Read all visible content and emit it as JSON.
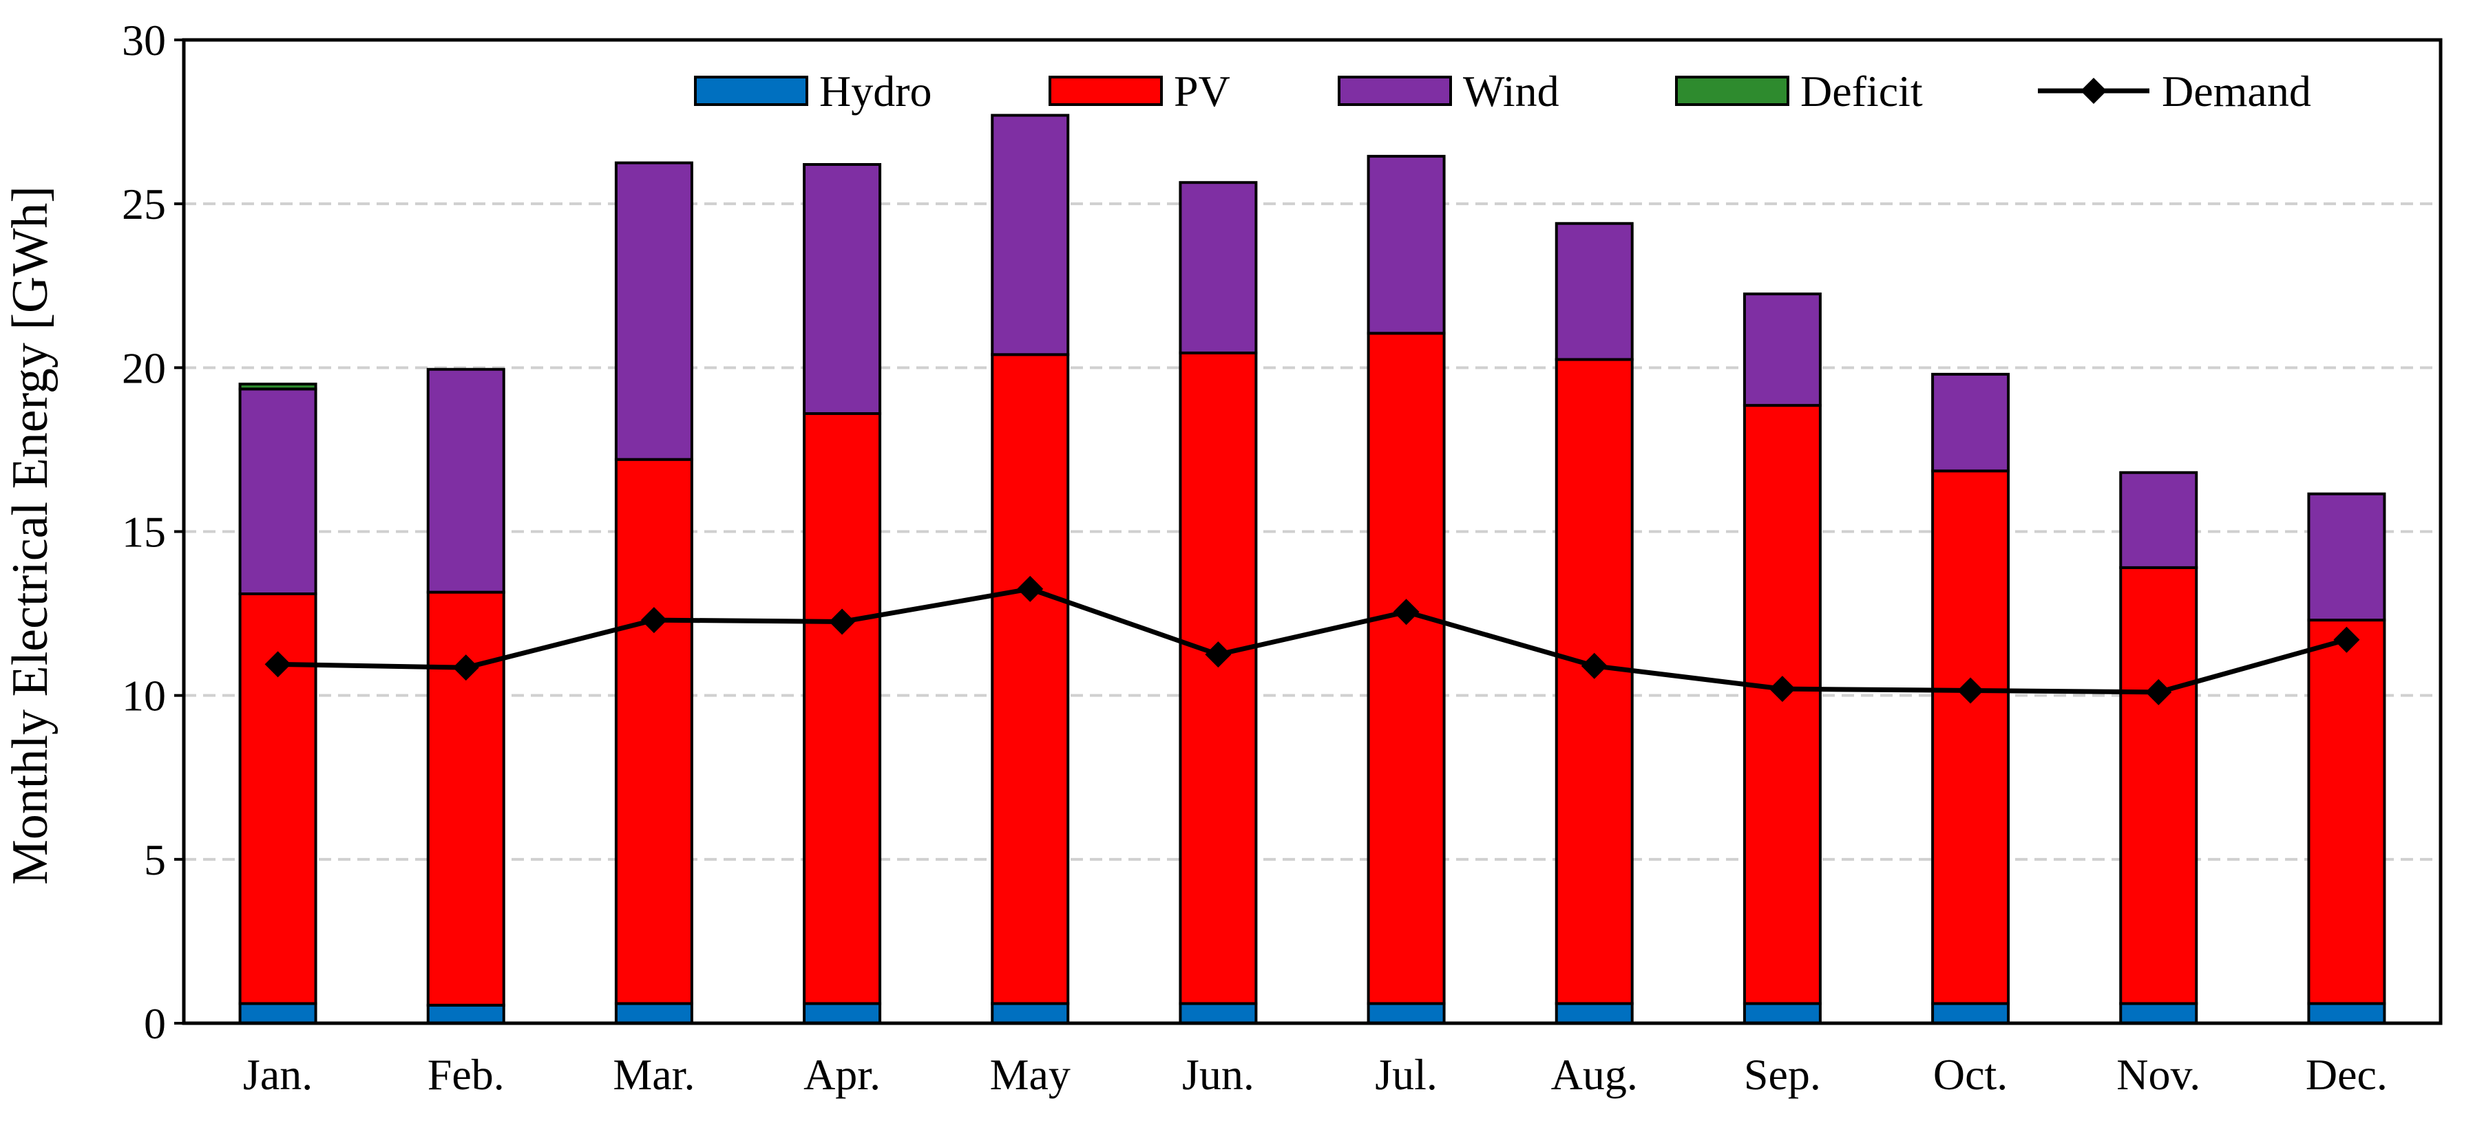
{
  "chart_data": {
    "type": "bar",
    "stacked": true,
    "ylabel": "Monthly Electrical Energy [GWh]",
    "xlabel": "",
    "ylim": [
      0,
      30
    ],
    "yticks": [
      0,
      5,
      10,
      15,
      20,
      25,
      30
    ],
    "ytick_labels": [
      "0",
      "5",
      "10",
      "15",
      "20",
      "25",
      "30"
    ],
    "grid": "horizontal dashed",
    "legend_position": "top",
    "categories": [
      "Jan.",
      "Feb.",
      "Mar.",
      "Apr.",
      "May",
      "Jun.",
      "Jul.",
      "Aug.",
      "Sep.",
      "Oct.",
      "Nov.",
      "Dec."
    ],
    "series": [
      {
        "name": "Hydro",
        "type": "bar",
        "color": "#0070C0",
        "values": [
          0.6,
          0.55,
          0.6,
          0.6,
          0.6,
          0.6,
          0.6,
          0.6,
          0.6,
          0.6,
          0.6,
          0.6
        ]
      },
      {
        "name": "PV",
        "type": "bar",
        "color": "#FF0000",
        "values": [
          12.5,
          12.6,
          16.6,
          18.0,
          19.8,
          19.85,
          20.45,
          19.65,
          18.25,
          16.25,
          13.3,
          11.7
        ]
      },
      {
        "name": "Wind",
        "type": "bar",
        "color": "#7F2FA3",
        "values": [
          6.25,
          6.8,
          9.05,
          7.6,
          7.3,
          5.2,
          5.4,
          4.15,
          3.4,
          2.95,
          2.9,
          3.85
        ]
      },
      {
        "name": "Deficit",
        "type": "bar",
        "color": "#2E8B2E",
        "values": [
          0.15,
          0,
          0,
          0,
          0,
          0,
          0,
          0,
          0,
          0,
          0,
          0
        ]
      },
      {
        "name": "Demand",
        "type": "line",
        "color": "#000000",
        "marker": "diamond",
        "values": [
          10.95,
          10.85,
          12.3,
          12.25,
          13.25,
          11.25,
          12.55,
          10.9,
          10.2,
          10.15,
          10.1,
          11.7
        ]
      }
    ]
  }
}
